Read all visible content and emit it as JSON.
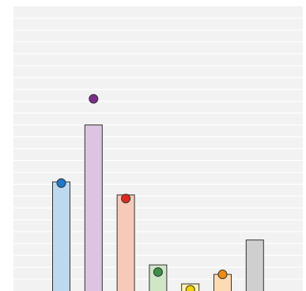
{
  "chart_data": {
    "type": "bar",
    "title": "",
    "xlabel": "",
    "ylabel": "",
    "ylim": [
      0,
      12
    ],
    "grid": true,
    "legend": "none",
    "categories": [
      "",
      "",
      "",
      "",
      "",
      "",
      ""
    ],
    "bar_values": [
      4.6,
      7.0,
      4.05,
      1.1,
      0.3,
      0.7,
      2.15
    ],
    "marker_values": [
      4.55,
      8.1,
      3.9,
      0.8,
      0.05,
      0.7,
      null
    ],
    "colors": {
      "plot_background": "#f2f2f2",
      "gridline": "#ffffff",
      "bar_outline": "#333333",
      "bar_fills": [
        "#bcd9f0",
        "#dcc4e2",
        "#f6c9b8",
        "#cfe6c7",
        "#fff2b0",
        "#fddcb3",
        "#cfcfcf"
      ],
      "marker_fills": [
        "#1f78c8",
        "#7b2d8b",
        "#e02a1f",
        "#3c8f47",
        "#f2d200",
        "#ef8a0e",
        null
      ]
    }
  }
}
